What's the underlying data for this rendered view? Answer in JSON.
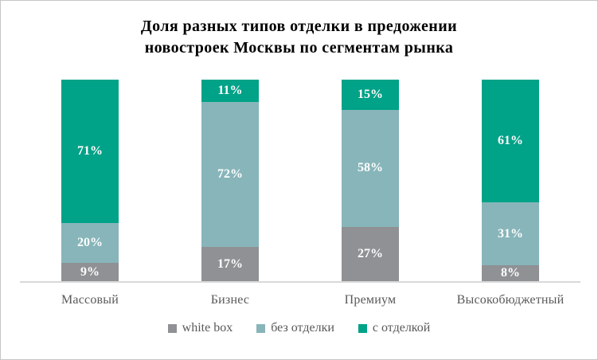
{
  "title": {
    "lines": [
      "Доля разных типов отделки в предожении",
      "новостроек Москвы по сегментам рынка"
    ]
  },
  "chart_data": {
    "type": "bar",
    "stacked": true,
    "percent_stacked": true,
    "title": "Доля разных типов отделки в предожении новостроек Москвы по сегментам рынка",
    "categories": [
      "Массовый",
      "Бизнес",
      "Премиум",
      "Высокобюджетный"
    ],
    "series": [
      {
        "name": "white box",
        "color": "#8f9194",
        "values": [
          9,
          17,
          27,
          8
        ]
      },
      {
        "name": "без отделки",
        "color": "#87b5ba",
        "values": [
          20,
          72,
          58,
          31
        ]
      },
      {
        "name": "с отделкой",
        "color": "#00a288",
        "values": [
          71,
          11,
          15,
          61
        ]
      }
    ],
    "value_label_format": "{value}%",
    "value_label_color": "#ffffff",
    "xlabel": "",
    "ylabel": "",
    "ylim": [
      0,
      100
    ],
    "grid": false,
    "legend_position": "bottom",
    "axis_line_color": "#d9d9d9",
    "category_text_color": "#595959"
  }
}
